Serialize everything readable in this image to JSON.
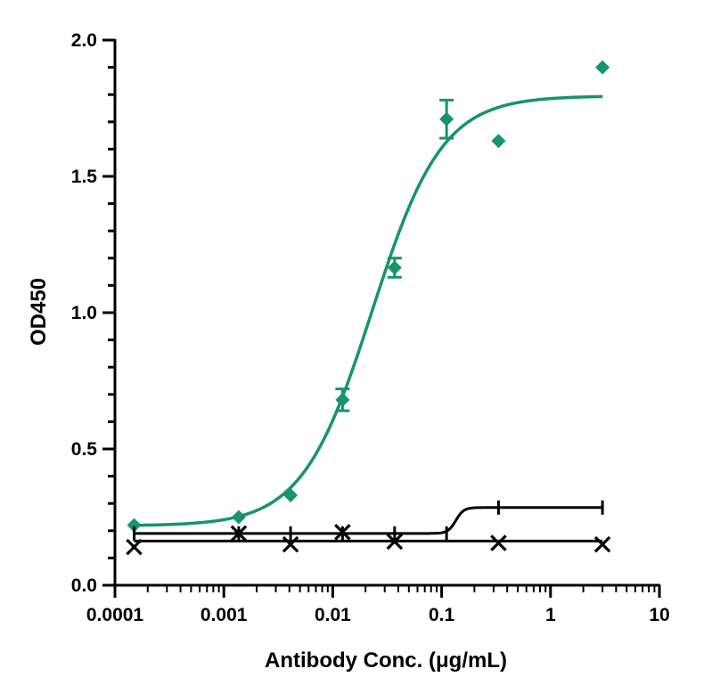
{
  "chart_data": {
    "type": "scatter",
    "xlabel": "Antibody Conc. (μg/mL)",
    "ylabel": "OD450",
    "x_scale": "log",
    "xlim": [
      0.0001,
      10
    ],
    "ylim": [
      0.0,
      2.0
    ],
    "x_ticks": [
      "0.0001",
      "0.001",
      "0.01",
      "0.1",
      "1",
      "10"
    ],
    "y_ticks": [
      "0.0",
      "0.5",
      "1.0",
      "1.5",
      "2.0"
    ],
    "grid": false,
    "legend": "none",
    "series": [
      {
        "marker": "diamond",
        "color": "#16946b",
        "x": [
          0.00015,
          0.00137,
          0.0041,
          0.0123,
          0.037,
          0.111,
          0.333,
          3.0
        ],
        "y": [
          0.22,
          0.25,
          0.33,
          0.68,
          1.165,
          1.71,
          1.63,
          1.9
        ],
        "error": [
          0,
          0,
          0,
          0.04,
          0.035,
          0.07,
          0,
          0
        ],
        "fit": {
          "kind": "4PL",
          "bottom": 0.218,
          "top": 1.795,
          "ec50": 0.023,
          "hill": 1.35,
          "x_range": [
            0.00015,
            3.0
          ]
        }
      },
      {
        "marker": "tick",
        "color": "#000000",
        "x": [
          0.00015,
          0.00137,
          0.0041,
          0.0123,
          0.037,
          0.111,
          0.333,
          3.0
        ],
        "y": [
          0.19,
          0.19,
          0.19,
          0.19,
          0.19,
          0.19,
          0.285,
          0.285
        ],
        "error": [
          0,
          0,
          0,
          0,
          0,
          0,
          0,
          0
        ],
        "fit": {
          "kind": "4PL",
          "bottom": 0.19,
          "top": 0.285,
          "ec50": 0.135,
          "hill": 12,
          "x_range": [
            0.00015,
            3.0
          ]
        }
      },
      {
        "marker": "x",
        "color": "#000000",
        "x": [
          0.00015,
          0.00137,
          0.0041,
          0.0123,
          0.037,
          0.333,
          3.0
        ],
        "y": [
          0.14,
          0.19,
          0.15,
          0.195,
          0.16,
          0.155,
          0.15
        ],
        "error": [
          0,
          0,
          0,
          0,
          0,
          0,
          0
        ],
        "fit": {
          "kind": "flat",
          "value": 0.162,
          "x_range": [
            0.00015,
            3.0
          ]
        }
      }
    ]
  }
}
